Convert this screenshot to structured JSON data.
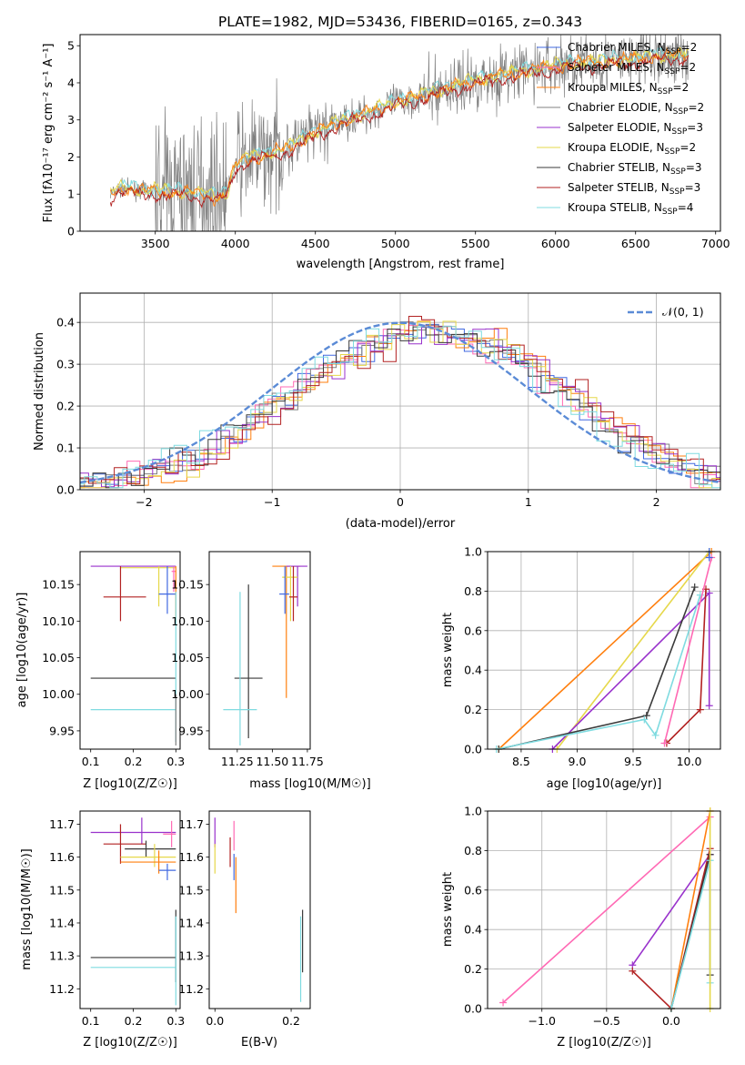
{
  "figure_title": "PLATE=1982, MJD=53436, FIBERID=0165, z=0.343",
  "colors": {
    "chabrier_miles": "#4169e1",
    "salpeter_miles": "#ff69b4",
    "kroupa_miles": "#ff7f0e",
    "chabrier_elodie": "#808080",
    "salpeter_elodie": "#9932cc",
    "kroupa_elodie": "#e6d84a",
    "chabrier_stelib": "#3a3a3a",
    "salpeter_stelib": "#b22222",
    "kroupa_stelib": "#7fdbe0",
    "normal_curve": "#5b8bd6"
  },
  "chart_data": [
    {
      "type": "line",
      "title": "PLATE=1982, MJD=53436, FIBERID=0165, z=0.343",
      "xlabel": "wavelength [Angstrom, rest frame]",
      "ylabel": "Flux [fλ10⁻¹⁷ erg cm⁻² s⁻¹ A⁻¹]",
      "xlim": [
        3030,
        7030
      ],
      "ylim": [
        0,
        5.3
      ],
      "xticks": [
        3500,
        4000,
        4500,
        5000,
        5500,
        6000,
        6500,
        7000
      ],
      "yticks": [
        0,
        1,
        2,
        3,
        4,
        5
      ],
      "legend_position": "top-right",
      "legend": [
        "Chabrier MILES, N_SSP=2",
        "Salpeter MILES, N_SSP=2",
        "Kroupa MILES, N_SSP=2",
        "Chabrier ELODIE, N_SSP=2",
        "Salpeter ELODIE, N_SSP=3",
        "Kroupa ELODIE, N_SSP=2",
        "Chabrier STELIB, N_SSP=3",
        "Salpeter STELIB, N_SSP=3",
        "Kroupa STELIB, N_SSP=4"
      ],
      "model_continuum": {
        "x": [
          3220,
          3280,
          3400,
          3500,
          3600,
          3700,
          3800,
          3900,
          3950,
          4000,
          4100,
          4200,
          4300,
          4400,
          4500,
          4600,
          4700,
          4800,
          4900,
          5000,
          5200,
          5400,
          5600,
          5800,
          6000,
          6200,
          6400,
          6600,
          6830
        ],
        "y": [
          1.0,
          1.15,
          1.1,
          1.1,
          1.05,
          1.05,
          1.0,
          0.9,
          1.05,
          1.8,
          2.0,
          2.05,
          2.2,
          2.4,
          2.65,
          2.85,
          3.0,
          3.15,
          3.3,
          3.45,
          3.7,
          3.95,
          4.15,
          4.3,
          4.45,
          4.55,
          4.6,
          4.7,
          4.75
        ]
      }
    },
    {
      "type": "line",
      "xlabel": "(data-model)/error",
      "ylabel": "Normed distribution",
      "xlim": [
        -2.5,
        2.5
      ],
      "ylim": [
        0,
        0.47
      ],
      "xticks": [
        -2,
        -1,
        0,
        1,
        2
      ],
      "yticks": [
        0.0,
        0.1,
        0.2,
        0.3,
        0.4
      ],
      "grid": true,
      "legend_position": "top-right",
      "legend": [
        "𝒩(0, 1)"
      ],
      "histogram_envelope": {
        "x": [
          -2.5,
          -2.0,
          -1.5,
          -1.0,
          -0.5,
          0.0,
          0.5,
          1.0,
          1.5,
          2.0,
          2.5
        ],
        "y": [
          0.015,
          0.04,
          0.09,
          0.2,
          0.31,
          0.38,
          0.37,
          0.3,
          0.18,
          0.08,
          0.025
        ]
      }
    },
    {
      "type": "scatter",
      "xlabel": "Z [log10(Z/Z☉)]",
      "ylabel": "age  [log10(age/yr)]",
      "xlim": [
        0.075,
        0.31
      ],
      "ylim": [
        9.925,
        10.195
      ],
      "xticks": [
        0.1,
        0.2,
        0.3
      ],
      "yticks": [
        9.95,
        10.0,
        10.05,
        10.1,
        10.15
      ]
    },
    {
      "type": "scatter",
      "xlabel": "mass [log10(M/M☉)]",
      "xlim": [
        11.05,
        11.77
      ],
      "ylim": [
        9.925,
        10.195
      ],
      "xticks": [
        11.0,
        11.25,
        11.5,
        11.75
      ],
      "yticks": [
        9.95,
        10.0,
        10.05,
        10.1,
        10.15
      ]
    },
    {
      "type": "line",
      "xlabel": "age  [log10(age/yr)]",
      "ylabel": "mass weight",
      "xlim": [
        8.2,
        10.28
      ],
      "ylim": [
        0,
        1
      ],
      "xticks": [
        8.5,
        9.0,
        9.5,
        10.0
      ],
      "yticks": [
        0.0,
        0.2,
        0.4,
        0.6,
        0.8,
        1.0
      ],
      "grid": true
    },
    {
      "type": "scatter",
      "xlabel": "Z [log10(Z/Z☉)]",
      "ylabel": "mass [log10(M/M☉)]",
      "xlim": [
        0.075,
        0.31
      ],
      "ylim": [
        11.14,
        11.74
      ],
      "xticks": [
        0.1,
        0.2,
        0.3
      ],
      "yticks": [
        11.2,
        11.3,
        11.4,
        11.5,
        11.6,
        11.7
      ]
    },
    {
      "type": "scatter",
      "xlabel": "E(B-V)",
      "xlim": [
        -0.015,
        0.25
      ],
      "ylim": [
        11.14,
        11.74
      ],
      "xticks": [
        0.0,
        0.2
      ],
      "yticks": [
        11.2,
        11.3,
        11.4,
        11.5,
        11.6,
        11.7
      ]
    },
    {
      "type": "line",
      "xlabel": "Z [log10(Z/Z☉)]",
      "ylabel": "mass weight",
      "xlim": [
        -1.42,
        0.38
      ],
      "ylim": [
        0,
        1
      ],
      "xticks": [
        -1.0,
        -0.5,
        0.0
      ],
      "yticks": [
        0.0,
        0.2,
        0.4,
        0.6,
        0.8,
        1.0
      ],
      "grid": true
    }
  ]
}
